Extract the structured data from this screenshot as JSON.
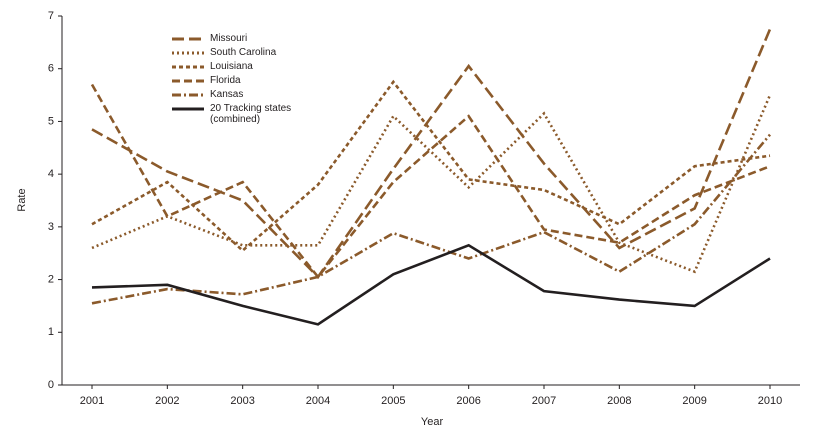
{
  "chart_data": {
    "type": "line",
    "xlabel": "Year",
    "ylabel": "Rate",
    "categories": [
      "2001",
      "2002",
      "2003",
      "2004",
      "2005",
      "2006",
      "2007",
      "2008",
      "2009",
      "2010"
    ],
    "ylim": [
      0,
      7
    ],
    "yticks": [
      0,
      1,
      2,
      3,
      4,
      5,
      6,
      7
    ],
    "series": [
      {
        "name": "Missouri",
        "color": "#8b5a2b",
        "dash": "12,5",
        "values": [
          4.85,
          4.05,
          3.5,
          2.05,
          4.1,
          6.05,
          4.2,
          2.6,
          3.35,
          6.75
        ]
      },
      {
        "name": "South Carolina",
        "color": "#8b5a2b",
        "dash": "2,3",
        "values": [
          2.6,
          3.2,
          2.65,
          2.65,
          5.1,
          3.75,
          5.15,
          2.7,
          2.15,
          5.5
        ]
      },
      {
        "name": "Louisiana",
        "color": "#8b5a2b",
        "dash": "4,3",
        "values": [
          3.05,
          3.85,
          2.55,
          3.8,
          5.75,
          3.9,
          3.7,
          3.05,
          4.15,
          4.35
        ]
      },
      {
        "name": "Florida",
        "color": "#8b5a2b",
        "dash": "8,4",
        "values": [
          5.7,
          3.2,
          3.85,
          2.05,
          3.85,
          5.1,
          2.95,
          2.7,
          3.6,
          4.15
        ]
      },
      {
        "name": "Kansas",
        "color": "#8b5a2b",
        "dash": "9,3,2,3",
        "values": [
          1.55,
          1.82,
          1.72,
          2.05,
          2.88,
          2.4,
          2.9,
          2.15,
          3.05,
          4.75
        ]
      },
      {
        "name": "20 Tracking states (combined)",
        "color": "#231f20",
        "dash": "none",
        "values": [
          1.85,
          1.9,
          1.5,
          1.15,
          2.1,
          2.65,
          1.78,
          1.62,
          1.5,
          2.4
        ]
      }
    ]
  }
}
